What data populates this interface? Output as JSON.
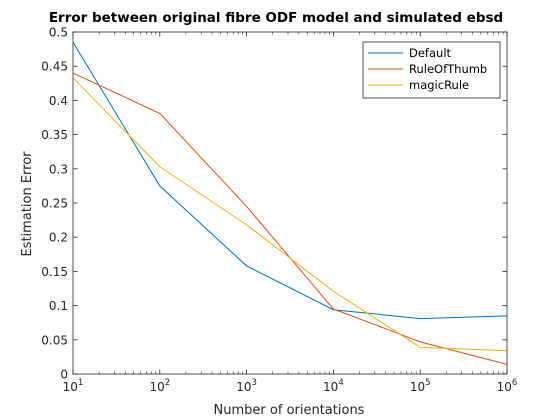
{
  "chart_data": {
    "type": "line",
    "title": "Error between original fibre ODF model and simulated ebsd",
    "xlabel": "Number of orientations",
    "ylabel": "Estimation Error",
    "x_scale": "log",
    "xlim": [
      10,
      1000000
    ],
    "ylim": [
      0,
      0.5
    ],
    "x": [
      10,
      100,
      1000,
      10000,
      100000,
      1000000
    ],
    "x_ticks": [
      {
        "base": "10",
        "exp": "1"
      },
      {
        "base": "10",
        "exp": "2"
      },
      {
        "base": "10",
        "exp": "3"
      },
      {
        "base": "10",
        "exp": "4"
      },
      {
        "base": "10",
        "exp": "5"
      },
      {
        "base": "10",
        "exp": "6"
      }
    ],
    "y_ticks": [
      "0",
      "0.05",
      "0.1",
      "0.15",
      "0.2",
      "0.25",
      "0.3",
      "0.35",
      "0.4",
      "0.45",
      "0.5"
    ],
    "y_tick_values": [
      0,
      0.05,
      0.1,
      0.15,
      0.2,
      0.25,
      0.3,
      0.35,
      0.4,
      0.45,
      0.5
    ],
    "grid": false,
    "legend_position": "top-right",
    "series": [
      {
        "name": "Default",
        "color": "#0072BD",
        "values": [
          0.485,
          0.275,
          0.158,
          0.094,
          0.081,
          0.085
        ]
      },
      {
        "name": "RuleOfThumb",
        "color": "#D95319",
        "values": [
          0.44,
          0.381,
          0.245,
          0.095,
          0.047,
          0.014
        ]
      },
      {
        "name": "magicRule",
        "color": "#EDB120",
        "values": [
          0.433,
          0.303,
          0.218,
          0.121,
          0.039,
          0.034
        ]
      }
    ]
  }
}
